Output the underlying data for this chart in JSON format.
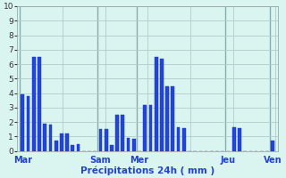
{
  "xlabel": "Précipitations 24h ( mm )",
  "ylim": [
    0,
    10
  ],
  "yticks": [
    0,
    1,
    2,
    3,
    4,
    5,
    6,
    7,
    8,
    9,
    10
  ],
  "bg_color": "#daf4f0",
  "bar_color": "#2244dd",
  "bar_edge_color": "#1133bb",
  "grid_color": "#b0cccc",
  "grid_major_color": "#8aabab",
  "bar_width": 0.6,
  "bar_values": [
    3.9,
    3.8,
    6.5,
    6.5,
    1.9,
    1.8,
    0.7,
    1.2,
    1.2,
    0.4,
    0.45,
    0.0,
    0.0,
    0.0,
    1.5,
    1.5,
    0.4,
    2.5,
    2.5,
    0.9,
    0.85,
    0.0,
    3.2,
    3.2,
    6.5,
    6.4,
    4.5,
    4.5,
    1.65,
    1.6,
    0.0,
    0.0,
    0.0,
    0.0,
    0.0,
    0.0,
    0.0,
    0.0,
    1.65,
    1.6,
    0.0,
    0.0,
    0.0,
    0.0,
    0.0,
    0.7
  ],
  "day_label_indices": [
    0,
    14,
    21,
    37,
    45
  ],
  "day_labels": [
    "Mar",
    "Sam",
    "Mer",
    "Jeu",
    "Ven"
  ],
  "total_slots": 51
}
